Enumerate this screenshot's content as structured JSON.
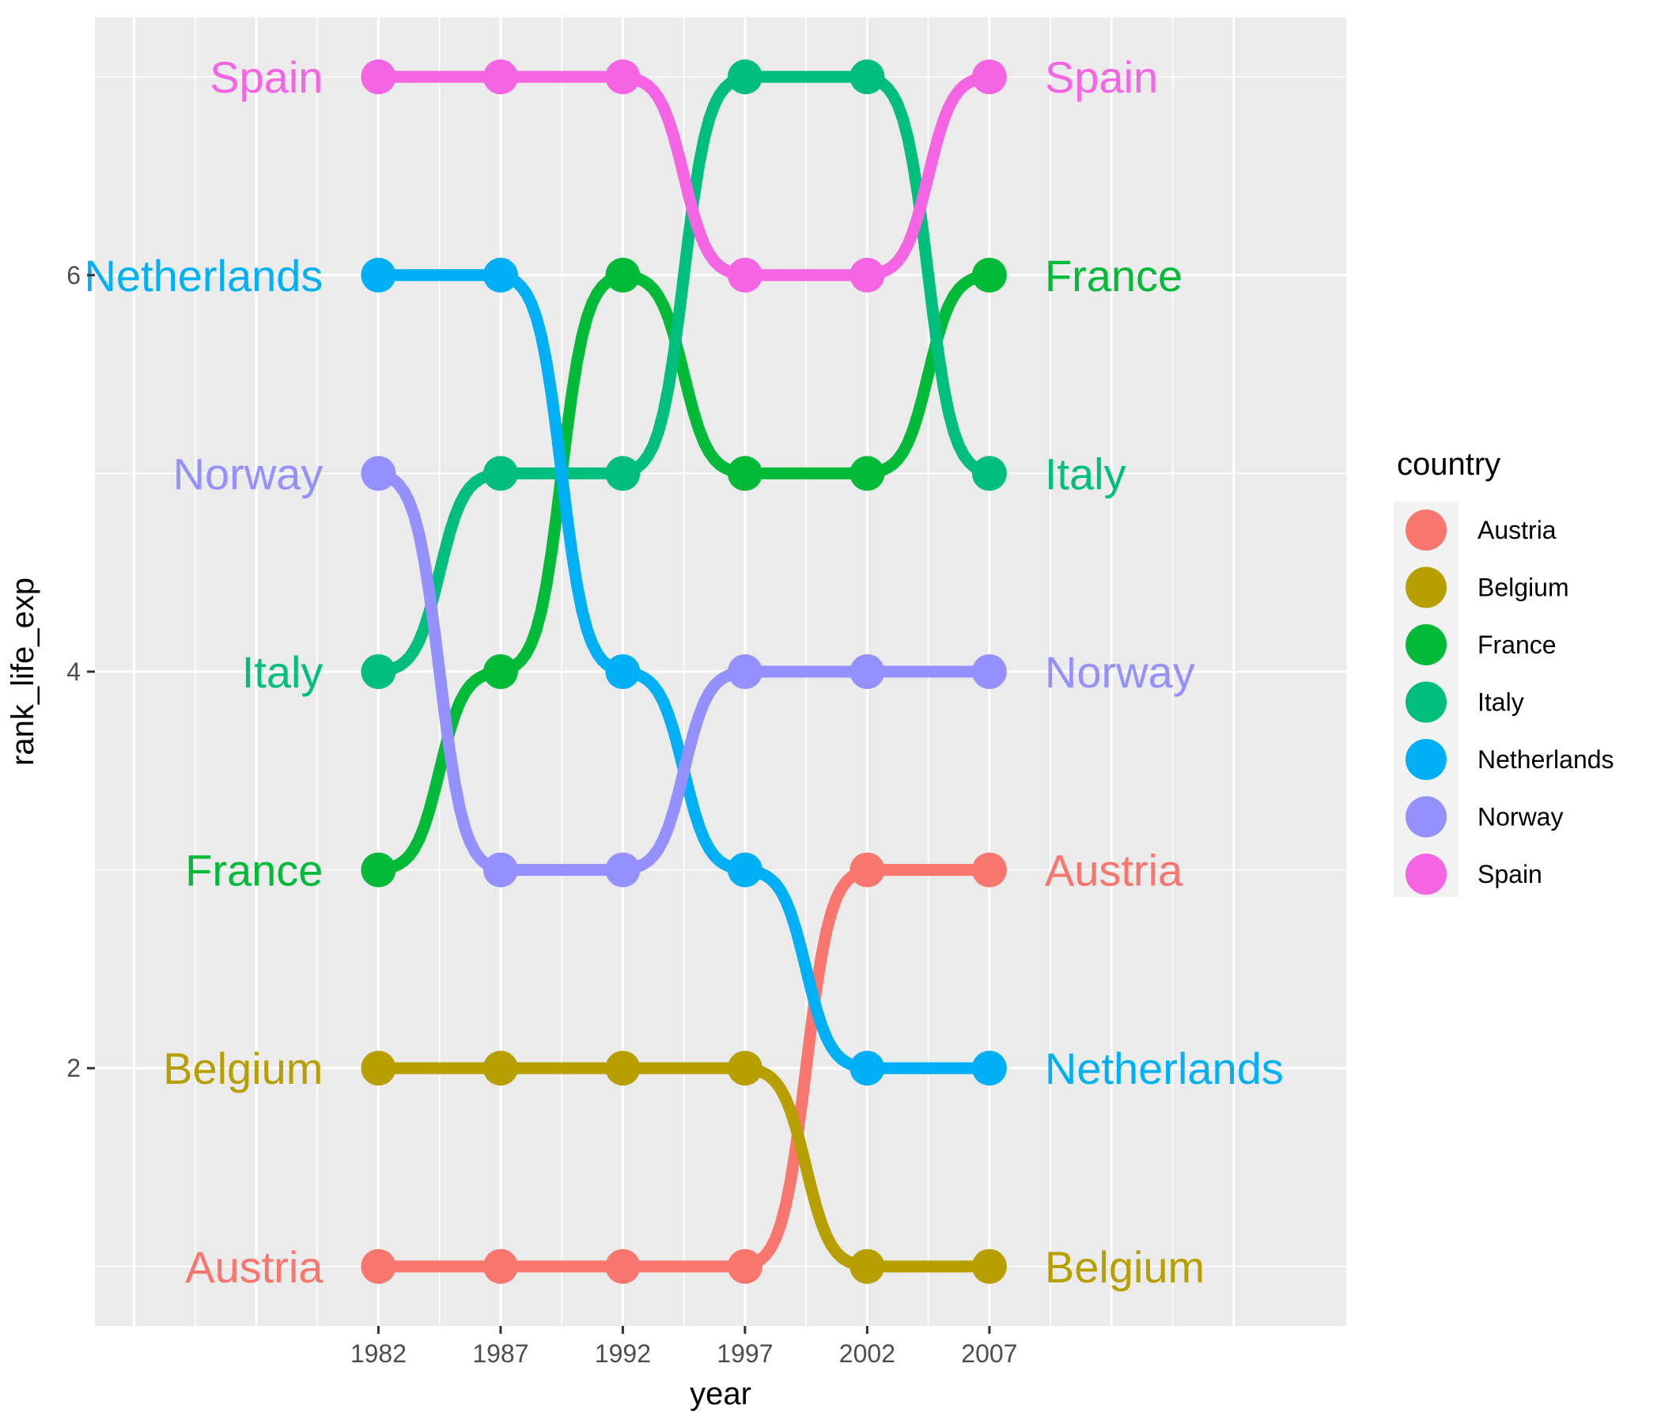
{
  "chart_data": {
    "type": "line",
    "title": "",
    "xlabel": "year",
    "ylabel": "rank_life_exp",
    "x": [
      1982,
      1987,
      1992,
      1997,
      2002,
      2007
    ],
    "x_tick_labels": [
      "1982",
      "1987",
      "1992",
      "1997",
      "2002",
      "2007"
    ],
    "y_ticks": [
      2,
      4,
      6
    ],
    "y_tick_labels": [
      "2",
      "4",
      "6"
    ],
    "xlim": [
      1970.4,
      2021.6
    ],
    "ylim": [
      0.7,
      7.3
    ],
    "grid": true,
    "legend": {
      "title": "country",
      "placement": "right"
    },
    "series": [
      {
        "name": "Austria",
        "color": "#F8766D",
        "values": [
          1,
          1,
          1,
          1,
          3,
          3
        ]
      },
      {
        "name": "Belgium",
        "color": "#B79F00",
        "values": [
          2,
          2,
          2,
          2,
          1,
          1
        ]
      },
      {
        "name": "France",
        "color": "#00BA38",
        "values": [
          3,
          4,
          6,
          5,
          5,
          6
        ]
      },
      {
        "name": "Italy",
        "color": "#00BF7D",
        "values": [
          4,
          5,
          5,
          7,
          7,
          5
        ]
      },
      {
        "name": "Netherlands",
        "color": "#00B0F6",
        "values": [
          6,
          6,
          4,
          3,
          2,
          2
        ]
      },
      {
        "name": "Norway",
        "color": "#9590FF",
        "values": [
          5,
          3,
          3,
          4,
          4,
          4
        ]
      },
      {
        "name": "Spain",
        "color": "#F564E3",
        "values": [
          7,
          7,
          7,
          6,
          6,
          7
        ]
      }
    ]
  }
}
